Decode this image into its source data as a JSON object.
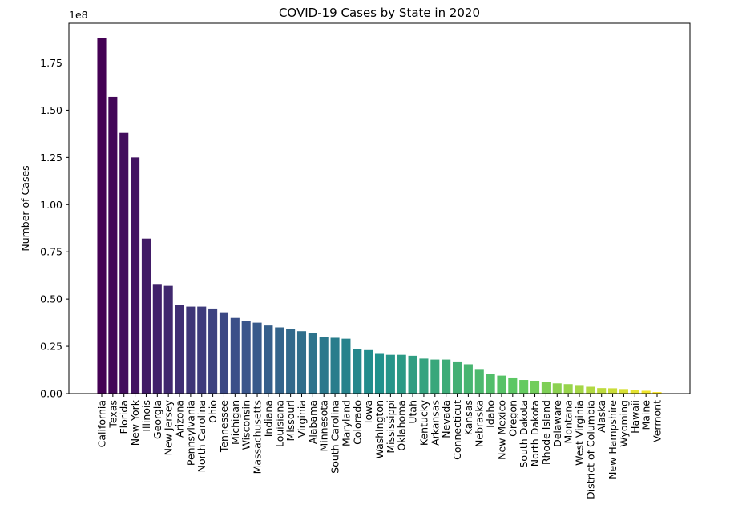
{
  "chart_data": {
    "type": "bar",
    "title": "COVID-19 Cases by State in 2020",
    "xlabel": "",
    "ylabel": "Number of Cases",
    "offset_text": "1e8",
    "ylim": [
      0,
      1.96
    ],
    "yticks": [
      0.0,
      0.25,
      0.5,
      0.75,
      1.0,
      1.25,
      1.5,
      1.75
    ],
    "ytick_labels": [
      "0.00",
      "0.25",
      "0.50",
      "0.75",
      "1.00",
      "1.25",
      "1.50",
      "1.75"
    ],
    "colormap": "viridis",
    "categories": [
      "California",
      "Texas",
      "Florida",
      "New York",
      "Illinois",
      "Georgia",
      "New Jersey",
      "Arizona",
      "Pennsylvania",
      "North Carolina",
      "Ohio",
      "Tennessee",
      "Michigan",
      "Wisconsin",
      "Massachusetts",
      "Indiana",
      "Louisiana",
      "Missouri",
      "Virginia",
      "Alabama",
      "Minnesota",
      "South Carolina",
      "Maryland",
      "Colorado",
      "Iowa",
      "Washington",
      "Mississippi",
      "Oklahoma",
      "Utah",
      "Kentucky",
      "Arkansas",
      "Nevada",
      "Connecticut",
      "Kansas",
      "Nebraska",
      "Idaho",
      "New Mexico",
      "Oregon",
      "South Dakota",
      "North Dakota",
      "Rhode Island",
      "Delaware",
      "Montana",
      "West Virginia",
      "District of Columbia",
      "Alaska",
      "New Hampshire",
      "Wyoming",
      "Hawaii",
      "Maine",
      "Vermont"
    ],
    "values": [
      1.88,
      1.57,
      1.38,
      1.25,
      0.82,
      0.58,
      0.57,
      0.47,
      0.46,
      0.46,
      0.45,
      0.43,
      0.4,
      0.385,
      0.375,
      0.36,
      0.35,
      0.34,
      0.33,
      0.32,
      0.3,
      0.295,
      0.29,
      0.235,
      0.23,
      0.21,
      0.205,
      0.205,
      0.2,
      0.185,
      0.18,
      0.18,
      0.17,
      0.155,
      0.13,
      0.105,
      0.095,
      0.085,
      0.072,
      0.068,
      0.062,
      0.054,
      0.05,
      0.045,
      0.036,
      0.029,
      0.028,
      0.024,
      0.019,
      0.015,
      0.008
    ]
  }
}
